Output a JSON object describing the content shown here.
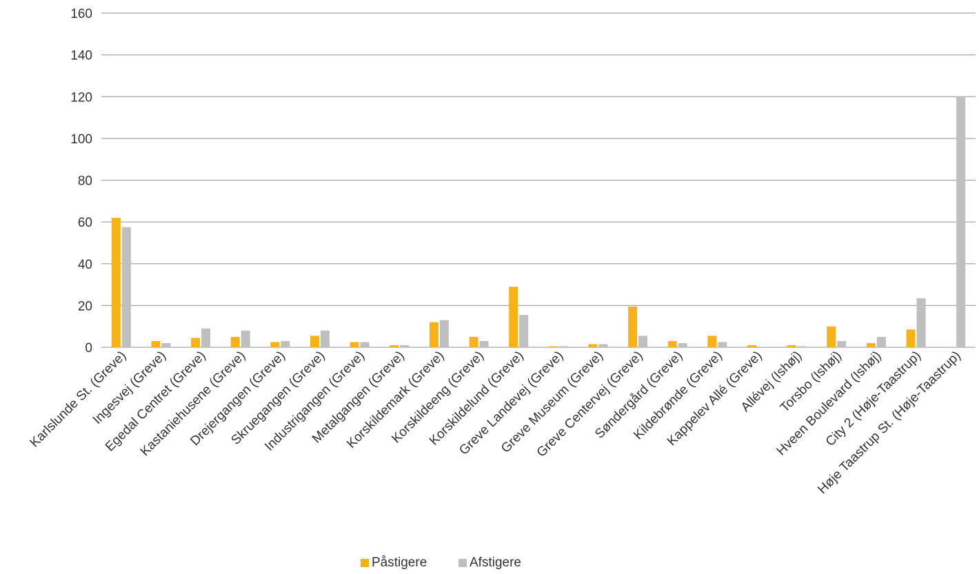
{
  "chart_data": {
    "type": "bar",
    "categories": [
      "Karlslunde St. (Greve)",
      "Ingesvej (Greve)",
      "Egedal Centret (Greve)",
      "Kastaniehusene (Greve)",
      "Drejergangen (Greve)",
      "Skruegangen (Greve)",
      "Industrigangen (Greve)",
      "Metalgangen (Greve)",
      "Korskildemark (Greve)",
      "Korskildeeng (Greve)",
      "Korskildelund (Greve)",
      "Greve Landevej (Greve)",
      "Greve Museum (Greve)",
      "Greve Centervej (Greve)",
      "Søndergård (Greve)",
      "Kildebrønde (Greve)",
      "Kappelev Allé (Greve)",
      "Allévej (Ishøj)",
      "Torsbo (Ishøj)",
      "Hveen Boulevard (Ishøj)",
      "City 2 (Høje-Taastrup)",
      "Høje Taastrup St. (Høje-Taastrup)"
    ],
    "series": [
      {
        "name": "Påstigere",
        "color": "#F7B217",
        "values": [
          62,
          3,
          4.5,
          5,
          2.5,
          5.5,
          2.5,
          1,
          12,
          5,
          29,
          0.5,
          1.5,
          19.5,
          3,
          5.5,
          1,
          1,
          10,
          2,
          8.5,
          0
        ]
      },
      {
        "name": "Afstigere",
        "color": "#BFBFBF",
        "values": [
          57.5,
          2,
          9,
          8,
          3,
          8,
          2.5,
          1,
          13,
          3,
          15.5,
          0.5,
          1.5,
          5.5,
          2,
          2.5,
          0,
          0.5,
          3,
          5,
          23.5,
          120
        ]
      }
    ],
    "yticks": [
      "0",
      "20",
      "40",
      "60",
      "80",
      "100",
      "120",
      "140",
      "160"
    ],
    "ylim": [
      0,
      160
    ],
    "grid": true,
    "legend_position": "bottom",
    "gridline_color": "#A6A6A6"
  }
}
